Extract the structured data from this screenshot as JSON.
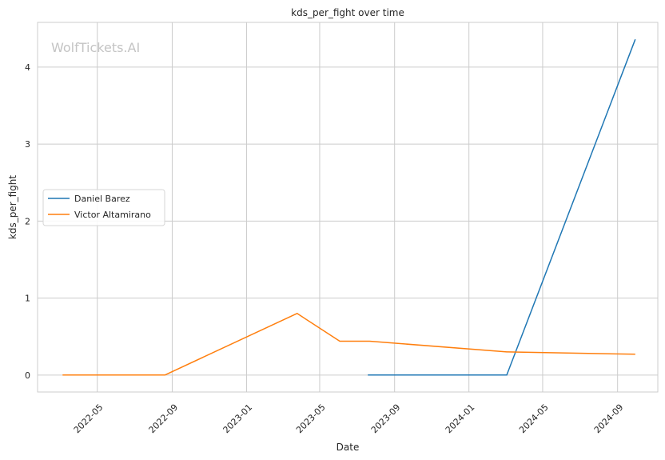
{
  "watermark": "WolfTickets.AI",
  "chart_data": {
    "type": "line",
    "title": "kds_per_fight over time",
    "xlabel": "Date",
    "ylabel": "kds_per_fight",
    "x_tick_labels": [
      "2022-05",
      "2022-09",
      "2023-01",
      "2023-05",
      "2023-09",
      "2024-01",
      "2024-05",
      "2024-09"
    ],
    "y_tick_labels": [
      "0",
      "1",
      "2",
      "3",
      "4"
    ],
    "xlim": [
      "2022-01-23",
      "2024-11-06"
    ],
    "ylim": [
      -0.22,
      4.58
    ],
    "grid": true,
    "legend_position": "center-left",
    "series": [
      {
        "name": "Daniel Barez",
        "color": "#1f77b4",
        "points": [
          {
            "x": "2023-07-19",
            "y": 0
          },
          {
            "x": "2024-03-03",
            "y": 0
          },
          {
            "x": "2024-09-30",
            "y": 4.36
          }
        ]
      },
      {
        "name": "Victor Altamirano",
        "color": "#ff7f0e",
        "points": [
          {
            "x": "2022-03-05",
            "y": 0
          },
          {
            "x": "2022-08-20",
            "y": 0
          },
          {
            "x": "2023-03-25",
            "y": 0.8
          },
          {
            "x": "2023-06-03",
            "y": 0.44
          },
          {
            "x": "2023-07-22",
            "y": 0.44
          },
          {
            "x": "2024-03-03",
            "y": 0.3
          },
          {
            "x": "2024-09-30",
            "y": 0.27
          }
        ]
      }
    ]
  }
}
